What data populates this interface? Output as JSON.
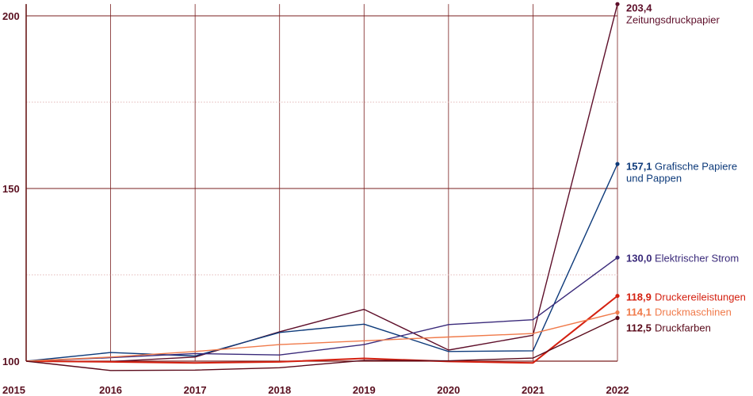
{
  "chart_data": {
    "type": "line",
    "x": [
      "2015",
      "2016",
      "2017",
      "2018",
      "2019",
      "2020",
      "2021",
      "2022"
    ],
    "y_ticks": [
      "100",
      "150",
      "200"
    ],
    "ylim": [
      100,
      203.4
    ],
    "grid": true,
    "colors": {
      "axis": "#6b1a1a",
      "grid_major": "#7a1f1f",
      "grid_minor": "#e3b8b8",
      "tick_label": "#5a1020"
    },
    "series": [
      {
        "name": "Zeitungsdruckpapier",
        "end_label": "203,4",
        "color": "#5e0f2a",
        "values": [
          100,
          99.9,
          101.2,
          108.5,
          115.0,
          103.2,
          107.5,
          203.4
        ]
      },
      {
        "name": "Grafische Papiere und Pappen",
        "end_label": "157,1",
        "color": "#0d3a7a",
        "values": [
          100,
          102.5,
          101.5,
          108.3,
          110.7,
          102.8,
          103.0,
          157.1
        ]
      },
      {
        "name": "Elektrischer Strom",
        "end_label": "130,0",
        "color": "#3a2a7a",
        "values": [
          100,
          101.0,
          102.2,
          101.8,
          104.8,
          110.6,
          112.0,
          130.0
        ]
      },
      {
        "name": "Druckereileistungen",
        "end_label": "118,9",
        "color": "#d42010",
        "values": [
          100,
          99.8,
          99.5,
          99.8,
          100.8,
          99.9,
          99.5,
          118.9
        ]
      },
      {
        "name": "Druckmaschinen",
        "end_label": "114,1",
        "color": "#f07a4a",
        "values": [
          100,
          101.2,
          102.8,
          104.8,
          105.9,
          107.0,
          108.0,
          114.1
        ]
      },
      {
        "name": "Druckfarben",
        "end_label": "112,5",
        "color": "#5a0a1a",
        "values": [
          100,
          97.3,
          97.4,
          98.1,
          100.2,
          100.1,
          100.9,
          112.5
        ]
      }
    ]
  }
}
